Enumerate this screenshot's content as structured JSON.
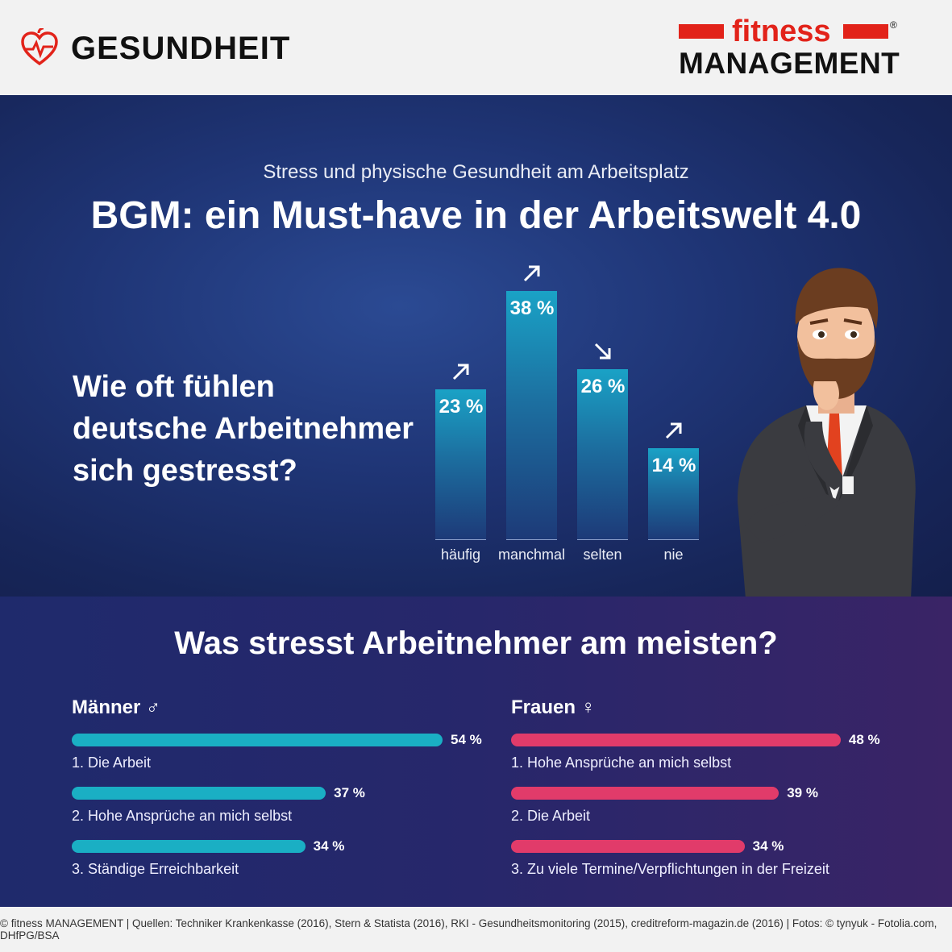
{
  "header": {
    "left_title": "GESUNDHEIT",
    "brand_top": "fitness",
    "brand_bottom": "MANAGEMENT",
    "brand_mark": "®",
    "heart_icon": "heart-pulse-icon",
    "colors": {
      "brand_red": "#e2231a"
    }
  },
  "top": {
    "subtitle": "Stress und physische Gesundheit am Arbeitsplatz",
    "headline": "BGM: ein Must-have in der Arbeitswelt 4.0",
    "question_lines": [
      "Wie oft fühlen",
      "deutsche Arbeitnehmer",
      "sich gestresst?"
    ]
  },
  "chart_data": [
    {
      "type": "bar",
      "categories": [
        "häufig",
        "manchmal",
        "selten",
        "nie"
      ],
      "values": [
        23,
        38,
        26,
        14
      ],
      "value_labels": [
        "23 %",
        "38 %",
        "26 %",
        "14 %"
      ],
      "trend_arrows": [
        "up-right",
        "up-right",
        "down-right",
        "up-right"
      ],
      "title": "Wie oft fühlen deutsche Arbeitnehmer sich gestresst?",
      "ylim": [
        0,
        40
      ],
      "grid": false,
      "colors": {
        "bar_top": "#1aa2c6",
        "bar_bottom": "#1d3a78"
      }
    },
    {
      "type": "bar",
      "orientation": "horizontal",
      "title": "Männer ♂",
      "categories": [
        "1. Die Arbeit",
        "2. Hohe Ansprüche an mich selbst",
        "3. Ständige Erreichbarkeit"
      ],
      "values": [
        54,
        37,
        34
      ],
      "value_labels": [
        "54 %",
        "37 %",
        "34 %"
      ],
      "colors": {
        "bar": "#1aafc4"
      }
    },
    {
      "type": "bar",
      "orientation": "horizontal",
      "title": "Frauen ♀",
      "categories": [
        "1. Hohe Ansprüche an mich selbst",
        "2. Die Arbeit",
        "3. Zu viele Termine/Verpflichtungen in der Freizeit"
      ],
      "values": [
        48,
        39,
        34
      ],
      "value_labels": [
        "48 %",
        "39 %",
        "34 %"
      ],
      "colors": {
        "bar": "#e13b6a"
      }
    }
  ],
  "bottom": {
    "title": "Was stresst Arbeitnehmer am meisten?",
    "men_title": "Männer ♂",
    "women_title": "Frauen ♀"
  },
  "footer": {
    "text": "© fitness MANAGEMENT  |  Quellen: Techniker Krankenkasse (2016), Stern & Statista (2016), RKI - Gesundheitsmonitoring (2015), creditreform-magazin.de (2016)  |  Fotos: © tynyuk - Fotolia.com, DHfPG/BSA"
  }
}
